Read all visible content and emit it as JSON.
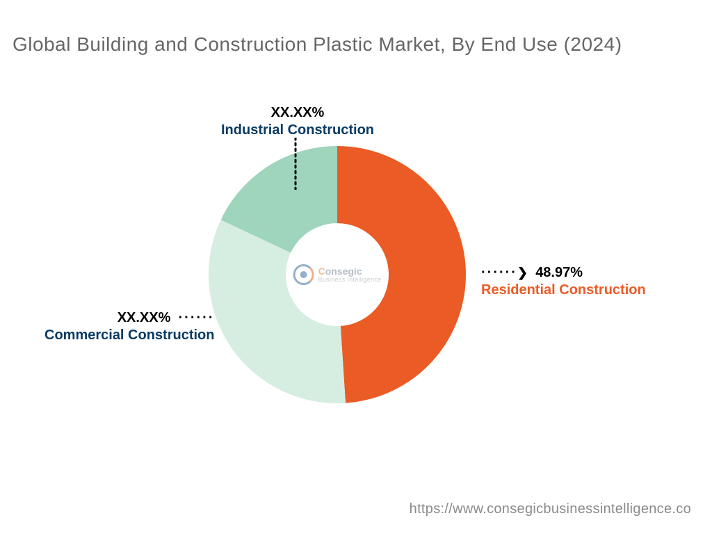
{
  "title": "Global Building and Construction Plastic Market, By End Use (2024)",
  "title_color": "#666666",
  "title_fontsize": 28,
  "footer_url": "https://www.consegicbusinessintelligence.co",
  "footer_color": "#8a8b8c",
  "chart": {
    "type": "donut",
    "background_color": "#ffffff",
    "inner_radius_pct": 40,
    "outer_radius_pct": 100,
    "start_angle_deg": 0,
    "slices": [
      {
        "name": "Residential Construction",
        "value": 48.97,
        "pct_label": "48.97%",
        "color": "#eb5b25",
        "label_color": "#eb5b25"
      },
      {
        "name": "Commercial Construction",
        "value": 33.03,
        "pct_label": "XX.XX%",
        "color": "#d6ede2",
        "label_color": "#0a3a63"
      },
      {
        "name": "Industrial Construction",
        "value": 18.0,
        "pct_label": "XX.XX%",
        "color": "#9fd4bd",
        "label_color": "#0a3a63"
      }
    ]
  },
  "center_logo": {
    "line1_prefix_char": "C",
    "line1_prefix_color": "#e08a5a",
    "line1_rest": "onsegic",
    "line1_rest_color": "#7a8a99",
    "line2": "Business Intelligence",
    "line2_color": "#9aa6b2"
  }
}
